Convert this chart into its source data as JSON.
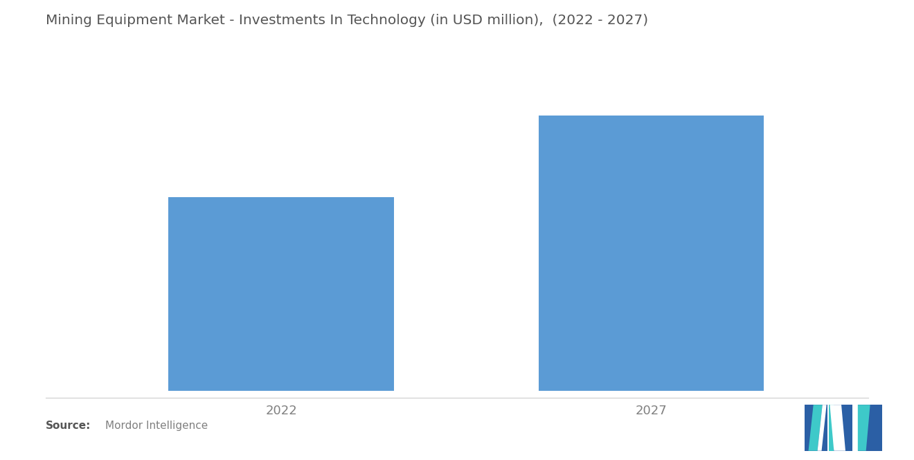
{
  "title": "Mining Equipment Market - Investments In Technology (in USD million),  (2022 - 2027)",
  "categories": [
    "2022",
    "2027"
  ],
  "values": [
    62,
    88
  ],
  "bar_color": "#5B9BD5",
  "background_color": "#ffffff",
  "title_fontsize": 14.5,
  "tick_fontsize": 13,
  "source_bold": "Source:",
  "source_detail": "Mordor Intelligence",
  "ylim": [
    0,
    100
  ],
  "bar_width": 0.28,
  "x_positions": [
    0.27,
    0.73
  ],
  "xlim": [
    0,
    1
  ],
  "logo_dark_blue": "#2B5FA5",
  "logo_teal": "#3EC9C9"
}
